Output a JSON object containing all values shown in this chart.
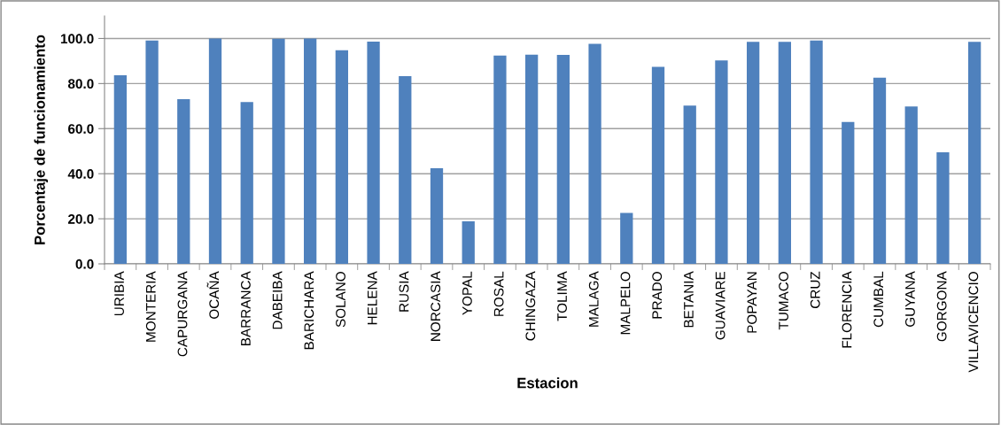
{
  "chart_data": {
    "type": "bar",
    "xlabel": "Estacion",
    "ylabel": "Porcentaje de funcionamiento",
    "categories": [
      "URIBIA",
      "MONTERIA",
      "CAPURGANA",
      "OCAÑA",
      "BARRANCA",
      "DABEIBA",
      "BARICHARA",
      "SOLANO",
      "HELENA",
      "RUSIA",
      "NORCASIA",
      "YOPAL",
      "ROSAL",
      "CHINGAZA",
      "TOLIMA",
      "MALAGA",
      "MALPELO",
      "PRADO",
      "BETANIA",
      "GUAVIARE",
      "POPAYAN",
      "TUMACO",
      "CRUZ",
      "FLORENCIA",
      "CUMBAL",
      "GUYANA",
      "GORGONA",
      "VILLAVICENCIO"
    ],
    "values": [
      83.7,
      99.1,
      73.1,
      100,
      71.8,
      99.9,
      100,
      94.8,
      98.6,
      83.3,
      42.4,
      18.9,
      92.4,
      92.8,
      92.7,
      97.6,
      22.6,
      87.4,
      70.2,
      90.3,
      98.5,
      98.5,
      99.1,
      63.0,
      82.6,
      69.8,
      49.5,
      98.5
    ],
    "color": "#4f81bd",
    "ylim": [
      0,
      110
    ],
    "yticks": [
      {
        "value": 0,
        "label": "0.0"
      },
      {
        "value": 20,
        "label": "20.0"
      },
      {
        "value": 40,
        "label": "40.0"
      },
      {
        "value": 60,
        "label": "60.0"
      },
      {
        "value": 80,
        "label": "80.0"
      },
      {
        "value": 100,
        "label": "100.0"
      }
    ],
    "grid": "y"
  }
}
